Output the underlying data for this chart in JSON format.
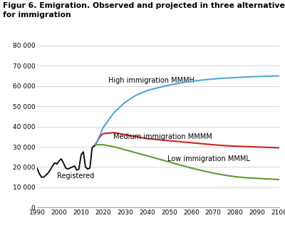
{
  "title": "Figur 6. Emigration. Observed and projected in three alternatives\nfor immigration",
  "xlim": [
    1990,
    2100
  ],
  "ylim": [
    0,
    80000
  ],
  "yticks": [
    0,
    10000,
    20000,
    30000,
    40000,
    50000,
    60000,
    70000,
    80000
  ],
  "ytick_labels": [
    "0",
    "10 000",
    "20 000",
    "30 000",
    "40 000",
    "50 000",
    "60 000",
    "70 000",
    "80 000"
  ],
  "xticks": [
    1990,
    2000,
    2010,
    2020,
    2030,
    2040,
    2050,
    2060,
    2070,
    2080,
    2090,
    2100
  ],
  "registered_color": "#000000",
  "high_color": "#4fa8d5",
  "medium_color": "#cc2222",
  "low_color": "#5a9e2f",
  "label_high": "High immigration MMMH",
  "label_medium": "Medium immigration MMMM",
  "label_low": "Low immigration MMML",
  "label_registered": "Registered",
  "registered_x": [
    1990,
    1991,
    1992,
    1993,
    1994,
    1995,
    1996,
    1997,
    1998,
    1999,
    2000,
    2001,
    2002,
    2003,
    2004,
    2005,
    2006,
    2007,
    2008,
    2009,
    2010,
    2011,
    2012,
    2013,
    2014,
    2015,
    2016
  ],
  "registered_y": [
    19500,
    16800,
    15000,
    15000,
    16000,
    17000,
    18500,
    20500,
    22000,
    21500,
    23000,
    24000,
    22000,
    19500,
    19000,
    19500,
    20000,
    20500,
    18500,
    19000,
    26000,
    27500,
    20000,
    19000,
    19500,
    29500,
    30500
  ],
  "projection_x": [
    2016,
    2017,
    2018,
    2019,
    2020,
    2025,
    2030,
    2035,
    2040,
    2045,
    2050,
    2055,
    2060,
    2065,
    2070,
    2075,
    2080,
    2085,
    2090,
    2095,
    2100
  ],
  "high_y": [
    30500,
    32000,
    34500,
    37000,
    39500,
    47000,
    52000,
    55500,
    57800,
    59200,
    60500,
    61500,
    62300,
    63000,
    63500,
    63900,
    64200,
    64500,
    64700,
    64900,
    65000
  ],
  "medium_y": [
    30500,
    32000,
    34000,
    35500,
    36500,
    37000,
    36000,
    35000,
    34000,
    33500,
    33000,
    32500,
    32000,
    31500,
    31000,
    30600,
    30300,
    30100,
    29900,
    29700,
    29500
  ],
  "low_y": [
    30500,
    31000,
    31000,
    31000,
    31000,
    30000,
    28500,
    27000,
    25500,
    24000,
    22500,
    21000,
    19500,
    18200,
    17000,
    16000,
    15200,
    14700,
    14400,
    14100,
    13800
  ],
  "bg_color": "#ffffff",
  "grid_color": "#d0d0d0",
  "title_fontsize": 7.8,
  "label_fontsize": 7.0
}
